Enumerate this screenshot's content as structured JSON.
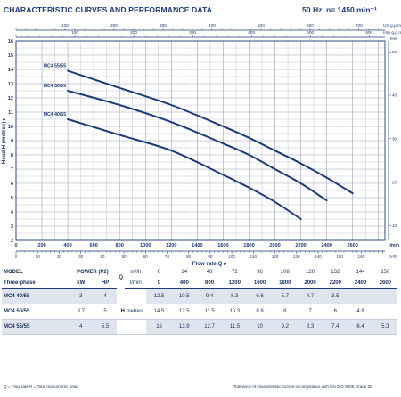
{
  "header": {
    "title": "CHARACTERISTIC CURVES AND PERFORMANCE DATA",
    "frequency": "50 Hz",
    "speed": "n= 1450 min⁻¹"
  },
  "chart_data": {
    "type": "line",
    "xlabel": "Flow rate  Q ▸",
    "ylabel": "Head H (metres) ▸",
    "x_unit": "l/min",
    "top_unit": "US g.p.m",
    "top_unit2": "Imp g.p.m",
    "right_unit": "feet",
    "bottom_unit": "m³/h",
    "xlim": [
      0,
      2850
    ],
    "ylim": [
      2,
      16
    ],
    "grid": true,
    "x_ticks": [
      0,
      200,
      400,
      600,
      800,
      1000,
      1200,
      1400,
      1600,
      1800,
      2000,
      2200,
      2400,
      2600
    ],
    "y_ticks": [
      2,
      3,
      4,
      5,
      6,
      7,
      8,
      9,
      10,
      11,
      12,
      13,
      14,
      15,
      16
    ],
    "top_ticks": [
      100,
      200,
      300,
      400,
      500,
      600,
      700
    ],
    "top2_ticks": [
      100,
      200,
      300,
      400,
      500,
      600
    ],
    "right_ticks": [
      10,
      20,
      30,
      40,
      50
    ],
    "bottom_ticks": [
      0,
      10,
      20,
      30,
      40,
      50,
      60,
      70,
      80,
      90,
      100,
      110,
      120,
      130,
      140,
      150,
      160
    ],
    "series": [
      {
        "name": "MC4 55/55",
        "x": [
          400,
          800,
          1200,
          1600,
          1800,
          2000,
          2200,
          2400,
          2600
        ],
        "y": [
          13.9,
          12.7,
          11.5,
          10,
          9.2,
          8.3,
          7.4,
          6.4,
          5.3
        ]
      },
      {
        "name": "MC4 50/55",
        "x": [
          400,
          800,
          1200,
          1600,
          1800,
          2000,
          2200,
          2400
        ],
        "y": [
          12.5,
          11.5,
          10.3,
          8.8,
          8,
          7,
          6,
          4.8
        ]
      },
      {
        "name": "MC4 40/55",
        "x": [
          400,
          800,
          1200,
          1600,
          1800,
          2000,
          2200
        ],
        "y": [
          10.5,
          9.4,
          8.3,
          6.6,
          5.7,
          4.7,
          3.5
        ]
      }
    ]
  },
  "table": {
    "model_label": "MODEL",
    "phase_label": "Three-phase",
    "power_label": "POWER (P2)",
    "kw_label": "kW",
    "hp_label": "HP",
    "q_label": "Q",
    "m3h_label": "m³/h",
    "lmin_label": "l/min",
    "h_label": "H",
    "metres_label": "metres",
    "flow_m3h": [
      "0",
      "24",
      "48",
      "72",
      "96",
      "108",
      "120",
      "132",
      "144",
      "156"
    ],
    "flow_lmin": [
      "0",
      "400",
      "800",
      "1200",
      "1600",
      "1800",
      "2000",
      "2200",
      "2400",
      "2600"
    ],
    "rows": [
      {
        "model": "MC4 40/55",
        "kw": "3",
        "hp": "4",
        "heads": [
          "12.5",
          "10.5",
          "9.4",
          "8.3",
          "6.6",
          "5.7",
          "4.7",
          "3.5",
          "",
          ""
        ]
      },
      {
        "model": "MC4 50/55",
        "kw": "3.7",
        "hp": "5",
        "heads": [
          "14.5",
          "12.5",
          "11.5",
          "10.3",
          "8.8",
          "8",
          "7",
          "6",
          "4.8",
          ""
        ]
      },
      {
        "model": "MC4 55/55",
        "kw": "4",
        "hp": "5.5",
        "heads": [
          "16",
          "13.9",
          "12.7",
          "11.5",
          "10",
          "9.2",
          "8.3",
          "7.4",
          "6.4",
          "5.3"
        ]
      }
    ]
  },
  "footer": {
    "left": "Q = Flow rate  H = Total manometric head",
    "right": "Tolerance of characteristic curves in compliance with EN ISO 9906 Grade 3B."
  },
  "colors": {
    "navy": "#1f3a78",
    "curve": "#1f3a78",
    "grid": "#9aa3b5",
    "shade": "#dfe5ef"
  }
}
